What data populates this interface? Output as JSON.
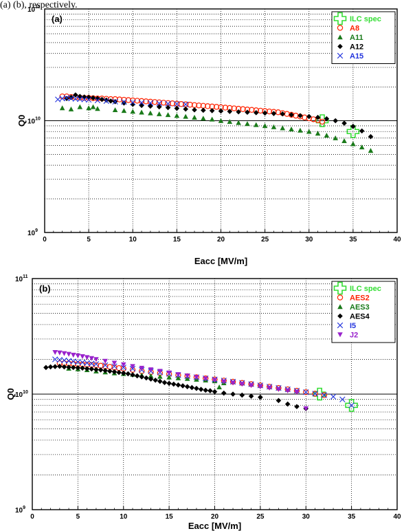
{
  "caption_fragment": "(a) (b), respectively.",
  "chart_data": [
    {
      "type": "scatter",
      "panel_label": "(a)",
      "xlabel": "Eacc [MV/m]",
      "ylabel": "Q0",
      "xlim": [
        0,
        40
      ],
      "ylim": [
        1000000000.0,
        100000000000.0
      ],
      "yscale": "log",
      "x_ticks": [
        "0",
        "5",
        "10",
        "15",
        "20",
        "25",
        "30",
        "35",
        "40"
      ],
      "legend_position": "top-right",
      "series": [
        {
          "name": "ILC spec",
          "marker": "plus",
          "color": "#33dd33",
          "x": [
            31.5,
            35
          ],
          "y": [
            10000000000.0,
            8000000000.0
          ]
        },
        {
          "name": "A8",
          "marker": "circle",
          "color": "#ff2200",
          "x": [
            2.0,
            2.5,
            3.0,
            3.5,
            4.0,
            4.5,
            5.0,
            5.5,
            6.0,
            6.5,
            7.0,
            7.5,
            8.0,
            8.5,
            9.0,
            9.5,
            10.0,
            10.5,
            11.0,
            11.5,
            12.0,
            12.5,
            13.0,
            13.5,
            14.0,
            14.5,
            15.0,
            15.5,
            16.0,
            16.5,
            17.0,
            17.5,
            18.0,
            18.5,
            19.0,
            19.5,
            20.0,
            20.5,
            21.0,
            21.5,
            22.0,
            22.5,
            23.0,
            23.5,
            24.0,
            24.5,
            25.0,
            25.5,
            26.0,
            26.5,
            27.0,
            27.5,
            28.0,
            28.5,
            29.0,
            29.5,
            30.0,
            30.5,
            31.0,
            31.5
          ],
          "y": [
            16500000000.0,
            16500000000.0,
            16300000000.0,
            16200000000.0,
            16100000000.0,
            16000000000.0,
            16000000000.0,
            15900000000.0,
            15800000000.0,
            15800000000.0,
            15700000000.0,
            15600000000.0,
            15600000000.0,
            15500000000.0,
            15400000000.0,
            15300000000.0,
            15200000000.0,
            15100000000.0,
            15000000000.0,
            14900000000.0,
            14800000000.0,
            14700000000.0,
            14600000000.0,
            14500000000.0,
            14400000000.0,
            14300000000.0,
            14200000000.0,
            14100000000.0,
            14000000000.0,
            13900000000.0,
            13800000000.0,
            13700000000.0,
            13600000000.0,
            13500000000.0,
            13400000000.0,
            13300000000.0,
            13200000000.0,
            13100000000.0,
            13000000000.0,
            12900000000.0,
            12800000000.0,
            12700000000.0,
            12600000000.0,
            12500000000.0,
            12400000000.0,
            12300000000.0,
            12200000000.0,
            12100000000.0,
            12000000000.0,
            11900000000.0,
            11700000000.0,
            11500000000.0,
            11300000000.0,
            11100000000.0,
            10900000000.0,
            10700000000.0,
            10500000000.0,
            10300000000.0,
            10100000000.0,
            9800000000.0
          ]
        },
        {
          "name": "A11",
          "marker": "triangle",
          "color": "#1a7a1a",
          "x": [
            2,
            3,
            4,
            5,
            5.5,
            6,
            8,
            9,
            10,
            11,
            12,
            13,
            14,
            15,
            16,
            17,
            18,
            19,
            20,
            21,
            22,
            23,
            24,
            25,
            26,
            27,
            28,
            29,
            30,
            31,
            32,
            33,
            34,
            35,
            36,
            37
          ],
          "y": [
            13000000000.0,
            12700000000.0,
            13300000000.0,
            13000000000.0,
            13300000000.0,
            12800000000.0,
            12500000000.0,
            12300000000.0,
            12100000000.0,
            11900000000.0,
            11700000000.0,
            11500000000.0,
            11300000000.0,
            11100000000.0,
            10900000000.0,
            10700000000.0,
            10500000000.0,
            10300000000.0,
            10000000000.0,
            9800000000.0,
            9600000000.0,
            9400000000.0,
            9200000000.0,
            9000000000.0,
            8800000000.0,
            8600000000.0,
            8400000000.0,
            8200000000.0,
            8000000000.0,
            7700000000.0,
            7400000000.0,
            7000000000.0,
            6600000000.0,
            6200000000.0,
            5800000000.0,
            5400000000.0
          ]
        },
        {
          "name": "A12",
          "marker": "diamond",
          "color": "#000000",
          "x": [
            2.5,
            3,
            3.5,
            4,
            4.5,
            5,
            5.5,
            6,
            6.5,
            7,
            7.5,
            8,
            9,
            10,
            11,
            12,
            13,
            14,
            15,
            16,
            17,
            18,
            19,
            20,
            21,
            22,
            23,
            24,
            25,
            26,
            27,
            28,
            29,
            30,
            31,
            32,
            33,
            34,
            35,
            36,
            37
          ],
          "y": [
            15800000000.0,
            16200000000.0,
            17000000000.0,
            16500000000.0,
            16300000000.0,
            16200000000.0,
            16000000000.0,
            15800000000.0,
            15500000000.0,
            15300000000.0,
            15000000000.0,
            14800000000.0,
            14400000000.0,
            14000000000.0,
            13700000000.0,
            13500000000.0,
            13300000000.0,
            13100000000.0,
            12900000000.0,
            12700000000.0,
            12500000000.0,
            12400000000.0,
            12300000000.0,
            12200000000.0,
            12100000000.0,
            12000000000.0,
            11900000000.0,
            11800000000.0,
            11700000000.0,
            11600000000.0,
            11500000000.0,
            11300000000.0,
            11100000000.0,
            10900000000.0,
            10700000000.0,
            10400000000.0,
            10000000000.0,
            9500000000.0,
            8900000000.0,
            8100000000.0,
            7200000000.0
          ]
        },
        {
          "name": "A15",
          "marker": "x",
          "color": "#2233dd",
          "x": [
            1.5,
            2,
            2.5,
            3,
            3.5,
            4,
            4.5,
            5,
            6,
            7,
            8,
            9,
            10,
            11,
            12,
            13,
            14,
            15,
            16
          ],
          "y": [
            15500000000.0,
            15800000000.0,
            16000000000.0,
            15800000000.0,
            15700000000.0,
            15600000000.0,
            15500000000.0,
            15400000000.0,
            15200000000.0,
            15000000000.0,
            14800000000.0,
            14700000000.0,
            14600000000.0,
            14500000000.0,
            14400000000.0,
            14300000000.0,
            14200000000.0,
            14100000000.0,
            14000000000.0
          ]
        }
      ]
    },
    {
      "type": "scatter",
      "panel_label": "(b)",
      "xlabel": "Eacc [MV/m]",
      "ylabel": "Q0",
      "xlim": [
        0,
        40
      ],
      "ylim": [
        1000000000.0,
        100000000000.0
      ],
      "yscale": "log",
      "x_ticks": [
        "0",
        "5",
        "10",
        "15",
        "20",
        "25",
        "30",
        "35",
        "40"
      ],
      "legend_position": "top-right",
      "series": [
        {
          "name": "ILC spec",
          "marker": "plus",
          "color": "#33dd33",
          "x": [
            31.5,
            35
          ],
          "y": [
            10000000000.0,
            8000000000.0
          ]
        },
        {
          "name": "AES2",
          "marker": "circle",
          "color": "#ff2200",
          "x": [
            3,
            3.5,
            4,
            4.5,
            5,
            5.5,
            6,
            6.5,
            7,
            7.5,
            8,
            8.5,
            9,
            9.5,
            10,
            11,
            12,
            13,
            14,
            15,
            16,
            17,
            18,
            19,
            20,
            21,
            22,
            23,
            24,
            25,
            26,
            27,
            28,
            29,
            30,
            31,
            32
          ],
          "y": [
            18500000000.0,
            18500000000.0,
            18400000000.0,
            18300000000.0,
            18200000000.0,
            18100000000.0,
            18000000000.0,
            17900000000.0,
            17800000000.0,
            17600000000.0,
            17400000000.0,
            17200000000.0,
            17000000000.0,
            16800000000.0,
            16600000000.0,
            16200000000.0,
            15800000000.0,
            15500000000.0,
            15200000000.0,
            14900000000.0,
            14600000000.0,
            14300000000.0,
            14000000000.0,
            13700000000.0,
            13400000000.0,
            13100000000.0,
            12800000000.0,
            12500000000.0,
            12200000000.0,
            11900000000.0,
            11600000000.0,
            11300000000.0,
            11000000000.0,
            10700000000.0,
            10400000000.0,
            10100000000.0,
            9800000000.0
          ]
        },
        {
          "name": "AES3",
          "marker": "triangle",
          "color": "#1a7a1a",
          "x": [
            4,
            5,
            6,
            7,
            8,
            9,
            10,
            11,
            12,
            13,
            14,
            15,
            16,
            17,
            18,
            19,
            20,
            20.5,
            21
          ],
          "y": [
            16700000000.0,
            16500000000.0,
            16200000000.0,
            15800000000.0,
            15500000000.0,
            15200000000.0,
            15000000000.0,
            14800000000.0,
            14600000000.0,
            14400000000.0,
            14200000000.0,
            14000000000.0,
            13800000000.0,
            13600000000.0,
            13400000000.0,
            13200000000.0,
            13000000000.0,
            11500000000.0,
            12500000000.0
          ]
        },
        {
          "name": "AES4",
          "marker": "diamond",
          "color": "#000000",
          "x": [
            1.5,
            2,
            2.5,
            3,
            3.5,
            4,
            4.5,
            5,
            5.5,
            6,
            6.5,
            7,
            7.5,
            8,
            8.5,
            9,
            9.5,
            10,
            10.5,
            11,
            11.5,
            12,
            12.5,
            13,
            13.5,
            14,
            14.5,
            15,
            15.5,
            16,
            16.5,
            17,
            17.5,
            18,
            18.5,
            19,
            19.5,
            20,
            21,
            22,
            23,
            24,
            25,
            27,
            28,
            29,
            30
          ],
          "y": [
            17000000000.0,
            17200000000.0,
            17300000000.0,
            17400000000.0,
            17200000000.0,
            17100000000.0,
            17000000000.0,
            16900000000.0,
            16800000000.0,
            16600000000.0,
            16500000000.0,
            16300000000.0,
            16200000000.0,
            16000000000.0,
            15800000000.0,
            15600000000.0,
            15400000000.0,
            15200000000.0,
            15000000000.0,
            14700000000.0,
            14400000000.0,
            14100000000.0,
            13800000000.0,
            13500000000.0,
            13200000000.0,
            12900000000.0,
            12600000000.0,
            12400000000.0,
            12200000000.0,
            12000000000.0,
            11800000000.0,
            11600000000.0,
            11400000000.0,
            11200000000.0,
            11000000000.0,
            10800000000.0,
            10700000000.0,
            10500000000.0,
            10200000000.0,
            10000000000.0,
            9800000000.0,
            9600000000.0,
            9400000000.0,
            8800000000.0,
            8200000000.0,
            7800000000.0,
            7500000000.0
          ]
        },
        {
          "name": "I5",
          "marker": "x",
          "color": "#2233dd",
          "x": [
            2.5,
            3,
            3.5,
            4,
            4.5,
            5,
            5.5,
            6,
            6.5,
            7,
            8,
            9,
            10,
            11,
            12,
            13,
            14,
            15,
            16,
            17,
            18,
            19,
            20,
            21,
            22,
            23,
            24,
            25,
            26,
            27,
            28,
            29,
            30,
            31,
            32,
            33,
            34,
            35
          ],
          "y": [
            20000000000.0,
            19800000000.0,
            19600000000.0,
            19400000000.0,
            19200000000.0,
            19000000000.0,
            18800000000.0,
            18600000000.0,
            18400000000.0,
            18200000000.0,
            17800000000.0,
            17400000000.0,
            17000000000.0,
            16600000000.0,
            16200000000.0,
            15800000000.0,
            15400000000.0,
            15000000000.0,
            14600000000.0,
            14300000000.0,
            14000000000.0,
            13700000000.0,
            13400000000.0,
            13100000000.0,
            12800000000.0,
            12500000000.0,
            12200000000.0,
            11900000000.0,
            11600000000.0,
            11300000000.0,
            11000000000.0,
            10700000000.0,
            10400000000.0,
            10100000000.0,
            9800000000.0,
            9500000000.0,
            9000000000.0,
            8000000000.0
          ]
        },
        {
          "name": "J2",
          "marker": "triangle-down",
          "color": "#9922cc",
          "x": [
            2.5,
            3,
            3.5,
            4,
            4.5,
            5,
            5.5,
            6,
            6.5,
            7,
            8,
            9,
            10,
            11,
            12,
            13,
            14,
            15,
            16,
            17,
            18,
            19,
            20,
            21,
            22,
            23,
            24,
            25,
            26,
            27,
            28,
            29,
            30
          ],
          "y": [
            23000000000.0,
            22800000000.0,
            22500000000.0,
            22200000000.0,
            21800000000.0,
            21500000000.0,
            21200000000.0,
            20800000000.0,
            20400000000.0,
            20000000000.0,
            19300000000.0,
            18600000000.0,
            18000000000.0,
            17400000000.0,
            16800000000.0,
            16300000000.0,
            15800000000.0,
            15300000000.0,
            14800000000.0,
            14400000000.0,
            14000000000.0,
            13600000000.0,
            13200000000.0,
            12800000000.0,
            12500000000.0,
            12200000000.0,
            11900000000.0,
            11600000000.0,
            11300000000.0,
            11000000000.0,
            10700000000.0,
            10400000000.0,
            7500000000.0
          ]
        }
      ]
    }
  ]
}
